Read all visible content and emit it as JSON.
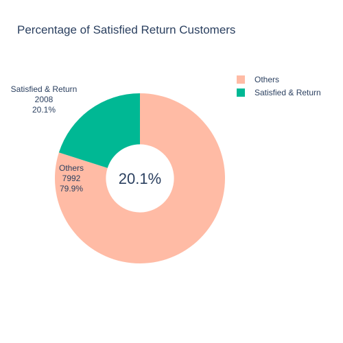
{
  "chart_data": {
    "type": "pie",
    "title": "Percentage of Satisfied Return Customers",
    "hole": 0.4,
    "center_annotation": "20.1%",
    "slices": [
      {
        "label": "Others",
        "value": 7992,
        "percent_text": "79.9%",
        "color": "#ffbba5"
      },
      {
        "label": "Satisfied & Return",
        "value": 2008,
        "percent_text": "20.1%",
        "color": "#00b894"
      }
    ],
    "legend": {
      "placement": "top-right",
      "items": [
        {
          "label": "Others",
          "color": "#ffbba5"
        },
        {
          "label": "Satisfied & Return",
          "color": "#00b894"
        }
      ]
    }
  }
}
